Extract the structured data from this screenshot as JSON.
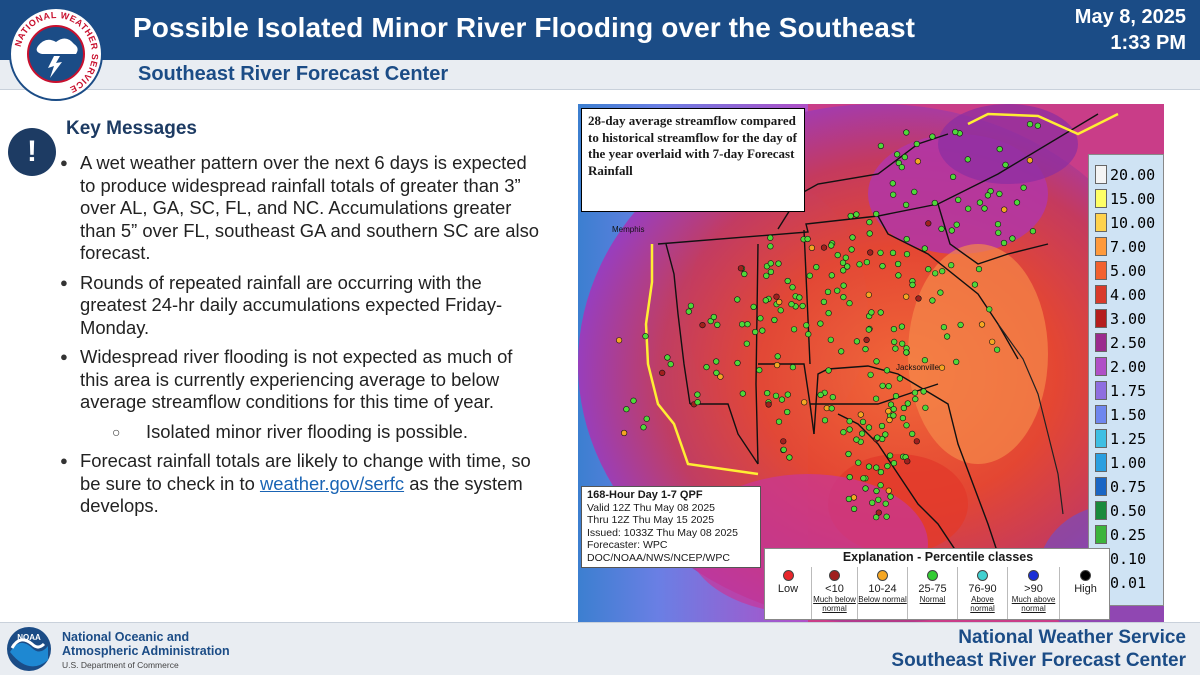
{
  "header": {
    "title": "Possible Isolated Minor River Flooding over the Southeast",
    "date": "May 8, 2025",
    "time": "1:33 PM",
    "subtitle": "Southeast River Forecast Center"
  },
  "logos": {
    "nws_ring_text": "NATIONAL WEATHER SERVICE",
    "noaa_text": "NOAA"
  },
  "key_messages": {
    "title": "Key Messages",
    "bullets": [
      "A wet weather pattern over the next 6 days is expected to produce widespread rainfall totals of greater than 3” over AL, GA, SC, FL, and NC. Accumulations greater than 5” over FL, southeast GA and southern SC are also forecast.",
      "Rounds of repeated rainfall are occurring with the greatest 24-hr daily accumulations expected Friday-Monday.",
      "Widespread river flooding is not expected as much of this area is currently experiencing average to below average streamflow conditions for this time of year."
    ],
    "sub_bullet": "Isolated minor river flooding is possible.",
    "last_bullet_before": "Forecast rainfall totals are likely to change with time, so be sure to check in to",
    "link": "weather.gov/serfc",
    "last_bullet_after": "as the system develops."
  },
  "map": {
    "annotation": "28-day average streamflow compared to historical streamflow for the day of the year overlaid with 7-day Forecast Rainfall",
    "qpf": {
      "line1": "168-Hour Day 1-7 QPF",
      "line2": "Valid 12Z Thu May 08 2025",
      "line3": "Thru 12Z Thu May 15 2025",
      "line4": "Issued: 1033Z Thu May 08 2025",
      "line5": "Forecaster: WPC",
      "line6": "DOC/NOAA/NWS/NCEP/WPC"
    },
    "colorbar": [
      {
        "label": "20.00",
        "color": "#f4f4f4"
      },
      {
        "label": "15.00",
        "color": "#ffff66"
      },
      {
        "label": "10.00",
        "color": "#ffd24d"
      },
      {
        "label": "7.00",
        "color": "#ff9a3c"
      },
      {
        "label": "5.00",
        "color": "#f2612f"
      },
      {
        "label": "4.00",
        "color": "#d93a2a"
      },
      {
        "label": "3.00",
        "color": "#b51e1e"
      },
      {
        "label": "2.50",
        "color": "#9b2b8e"
      },
      {
        "label": "2.00",
        "color": "#b04fc7"
      },
      {
        "label": "1.75",
        "color": "#8f6ee0"
      },
      {
        "label": "1.50",
        "color": "#6f86ee"
      },
      {
        "label": "1.25",
        "color": "#3fbfe3"
      },
      {
        "label": "1.00",
        "color": "#2a9fe0"
      },
      {
        "label": "0.75",
        "color": "#1a66c4"
      },
      {
        "label": "0.50",
        "color": "#1a8a3c"
      },
      {
        "label": "0.25",
        "color": "#3cb43c"
      },
      {
        "label": "0.10",
        "color": "#8fe04a"
      },
      {
        "label": "0.01",
        "color": "#d6d6d6"
      }
    ],
    "legend": {
      "title": "Explanation - Percentile classes",
      "classes": [
        {
          "label": "Low",
          "note": "",
          "color": "#e8262b"
        },
        {
          "label": "<10",
          "note": "Much below normal",
          "color": "#a0201e"
        },
        {
          "label": "10-24",
          "note": "Below normal",
          "color": "#f5a623"
        },
        {
          "label": "25-75",
          "note": "Normal",
          "color": "#33cc33"
        },
        {
          "label": "76-90",
          "note": "Above normal",
          "color": "#40d0d0"
        },
        {
          "label": ">90",
          "note": "Much above normal",
          "color": "#1a2fd6"
        },
        {
          "label": "High",
          "note": "",
          "color": "#000000"
        }
      ]
    },
    "place_labels": [
      "Memphis",
      "Jacksonville"
    ]
  },
  "footer": {
    "noaa_line1": "National Oceanic and",
    "noaa_line2": "Atmospheric Administration",
    "noaa_dept": "U.S. Department of Commerce",
    "nws_line1": "National Weather Service",
    "nws_line2": "Southeast River Forecast Center"
  }
}
